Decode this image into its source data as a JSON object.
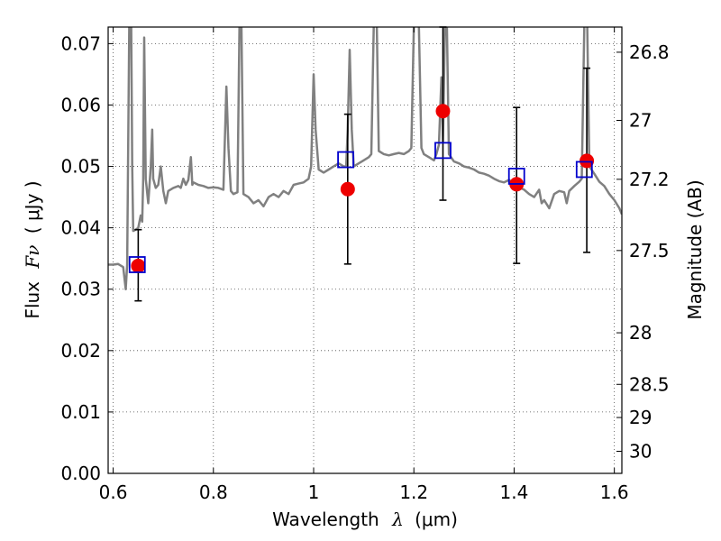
{
  "chart_data": {
    "type": "scatter",
    "xlabel_text": "Wavelength",
    "xlabel_symbol": "λ",
    "xlabel_unit": "(μm)",
    "ylabel_text": "Flux",
    "ylabel_symbol": "Fν",
    "ylabel_unit": "( μJy )",
    "y2label": "Magnitude (AB)",
    "xlim": [
      0.59,
      1.615
    ],
    "ylim": [
      0.0,
      0.0727
    ],
    "grid": true,
    "x_ticks": [
      0.6,
      0.8,
      1.0,
      1.2,
      1.4,
      1.6
    ],
    "x_tick_labels": [
      "0.6",
      "0.8",
      "1",
      "1.2",
      "1.4",
      "1.6"
    ],
    "y_ticks": [
      0.0,
      0.01,
      0.02,
      0.03,
      0.04,
      0.05,
      0.06,
      0.07
    ],
    "y_tick_labels": [
      "0.00",
      "0.01",
      "0.02",
      "0.03",
      "0.04",
      "0.05",
      "0.06",
      "0.07"
    ],
    "y2_ticks": [
      {
        "label": "26.8",
        "flux": 0.0686
      },
      {
        "label": "27",
        "flux": 0.0575
      },
      {
        "label": "27.2",
        "flux": 0.0479
      },
      {
        "label": "27.5",
        "flux": 0.0363
      },
      {
        "label": "28",
        "flux": 0.0229
      },
      {
        "label": "28.5",
        "flux": 0.0145
      },
      {
        "label": "29",
        "flux": 0.0091
      },
      {
        "label": "30",
        "flux": 0.0036
      }
    ],
    "model_spectrum": {
      "color": "#808080",
      "points": [
        [
          0.59,
          0.034
        ],
        [
          0.6,
          0.034
        ],
        [
          0.61,
          0.0341
        ],
        [
          0.62,
          0.0336
        ],
        [
          0.625,
          0.03
        ],
        [
          0.628,
          0.034
        ],
        [
          0.632,
          0.0728
        ],
        [
          0.636,
          0.0728
        ],
        [
          0.638,
          0.05
        ],
        [
          0.64,
          0.0395
        ],
        [
          0.645,
          0.0397
        ],
        [
          0.65,
          0.04
        ],
        [
          0.655,
          0.042
        ],
        [
          0.658,
          0.041
        ],
        [
          0.66,
          0.048
        ],
        [
          0.662,
          0.071
        ],
        [
          0.665,
          0.048
        ],
        [
          0.67,
          0.044
        ],
        [
          0.675,
          0.05
        ],
        [
          0.678,
          0.056
        ],
        [
          0.68,
          0.048
        ],
        [
          0.685,
          0.0465
        ],
        [
          0.69,
          0.047
        ],
        [
          0.695,
          0.05
        ],
        [
          0.7,
          0.046
        ],
        [
          0.705,
          0.044
        ],
        [
          0.71,
          0.046
        ],
        [
          0.72,
          0.0465
        ],
        [
          0.73,
          0.0468
        ],
        [
          0.735,
          0.0465
        ],
        [
          0.74,
          0.048
        ],
        [
          0.745,
          0.047
        ],
        [
          0.75,
          0.0478
        ],
        [
          0.755,
          0.0515
        ],
        [
          0.758,
          0.047
        ],
        [
          0.76,
          0.0474
        ],
        [
          0.77,
          0.047
        ],
        [
          0.78,
          0.0468
        ],
        [
          0.79,
          0.0465
        ],
        [
          0.8,
          0.0466
        ],
        [
          0.81,
          0.0465
        ],
        [
          0.82,
          0.0462
        ],
        [
          0.826,
          0.063
        ],
        [
          0.83,
          0.053
        ],
        [
          0.835,
          0.046
        ],
        [
          0.84,
          0.0455
        ],
        [
          0.848,
          0.0458
        ],
        [
          0.852,
          0.0728
        ],
        [
          0.856,
          0.0728
        ],
        [
          0.86,
          0.0455
        ],
        [
          0.87,
          0.045
        ],
        [
          0.88,
          0.044
        ],
        [
          0.89,
          0.0445
        ],
        [
          0.9,
          0.0435
        ],
        [
          0.91,
          0.045
        ],
        [
          0.92,
          0.0455
        ],
        [
          0.93,
          0.045
        ],
        [
          0.94,
          0.046
        ],
        [
          0.95,
          0.0455
        ],
        [
          0.96,
          0.047
        ],
        [
          0.97,
          0.0472
        ],
        [
          0.98,
          0.0474
        ],
        [
          0.99,
          0.048
        ],
        [
          0.995,
          0.05
        ],
        [
          1.0,
          0.065
        ],
        [
          1.004,
          0.056
        ],
        [
          1.01,
          0.0495
        ],
        [
          1.02,
          0.049
        ],
        [
          1.03,
          0.0495
        ],
        [
          1.04,
          0.05
        ],
        [
          1.05,
          0.0505
        ],
        [
          1.06,
          0.05
        ],
        [
          1.065,
          0.05
        ],
        [
          1.068,
          0.056
        ],
        [
          1.072,
          0.069
        ],
        [
          1.076,
          0.056
        ],
        [
          1.08,
          0.05
        ],
        [
          1.09,
          0.0505
        ],
        [
          1.1,
          0.051
        ],
        [
          1.11,
          0.0515
        ],
        [
          1.115,
          0.052
        ],
        [
          1.12,
          0.0728
        ],
        [
          1.126,
          0.0728
        ],
        [
          1.13,
          0.0525
        ],
        [
          1.14,
          0.052
        ],
        [
          1.15,
          0.0518
        ],
        [
          1.16,
          0.052
        ],
        [
          1.17,
          0.0522
        ],
        [
          1.18,
          0.052
        ],
        [
          1.19,
          0.0525
        ],
        [
          1.195,
          0.053
        ],
        [
          1.2,
          0.0728
        ],
        [
          1.21,
          0.0728
        ],
        [
          1.215,
          0.053
        ],
        [
          1.22,
          0.052
        ],
        [
          1.23,
          0.0515
        ],
        [
          1.24,
          0.051
        ],
        [
          1.245,
          0.052
        ],
        [
          1.25,
          0.0535
        ],
        [
          1.255,
          0.0645
        ],
        [
          1.258,
          0.054
        ],
        [
          1.262,
          0.0728
        ],
        [
          1.266,
          0.0728
        ],
        [
          1.27,
          0.052
        ],
        [
          1.28,
          0.0508
        ],
        [
          1.29,
          0.0505
        ],
        [
          1.3,
          0.05
        ],
        [
          1.31,
          0.0498
        ],
        [
          1.32,
          0.0495
        ],
        [
          1.33,
          0.049
        ],
        [
          1.34,
          0.0488
        ],
        [
          1.35,
          0.0485
        ],
        [
          1.36,
          0.048
        ],
        [
          1.37,
          0.0476
        ],
        [
          1.38,
          0.0474
        ],
        [
          1.39,
          0.0478
        ],
        [
          1.4,
          0.047
        ],
        [
          1.41,
          0.0466
        ],
        [
          1.42,
          0.0462
        ],
        [
          1.43,
          0.0455
        ],
        [
          1.44,
          0.045
        ],
        [
          1.45,
          0.0462
        ],
        [
          1.455,
          0.044
        ],
        [
          1.46,
          0.0445
        ],
        [
          1.47,
          0.0432
        ],
        [
          1.48,
          0.0455
        ],
        [
          1.49,
          0.046
        ],
        [
          1.5,
          0.0458
        ],
        [
          1.505,
          0.044
        ],
        [
          1.51,
          0.046
        ],
        [
          1.52,
          0.0468
        ],
        [
          1.53,
          0.0475
        ],
        [
          1.535,
          0.048
        ],
        [
          1.54,
          0.0728
        ],
        [
          1.546,
          0.0728
        ],
        [
          1.55,
          0.05
        ],
        [
          1.56,
          0.0488
        ],
        [
          1.57,
          0.0475
        ],
        [
          1.58,
          0.0468
        ],
        [
          1.59,
          0.0455
        ],
        [
          1.6,
          0.0445
        ],
        [
          1.61,
          0.0432
        ],
        [
          1.615,
          0.0422
        ]
      ]
    },
    "observed": {
      "color": "#ee0000",
      "points": [
        {
          "x": 0.65,
          "y": 0.0338,
          "err_low": 0.0281,
          "err_high": 0.0397
        },
        {
          "x": 1.068,
          "y": 0.0463,
          "err_low": 0.0341,
          "err_high": 0.0585
        },
        {
          "x": 1.258,
          "y": 0.059,
          "err_low": 0.0445,
          "err_high": 0.0727
        },
        {
          "x": 1.405,
          "y": 0.0471,
          "err_low": 0.0342,
          "err_high": 0.0596
        },
        {
          "x": 1.545,
          "y": 0.0509,
          "err_low": 0.036,
          "err_high": 0.066
        }
      ]
    },
    "model_photometry": {
      "color": "#0000cc",
      "points": [
        {
          "x": 0.648,
          "y": 0.034
        },
        {
          "x": 1.064,
          "y": 0.0511
        },
        {
          "x": 1.258,
          "y": 0.0526
        },
        {
          "x": 1.405,
          "y": 0.0484
        },
        {
          "x": 1.54,
          "y": 0.0495
        }
      ]
    }
  }
}
